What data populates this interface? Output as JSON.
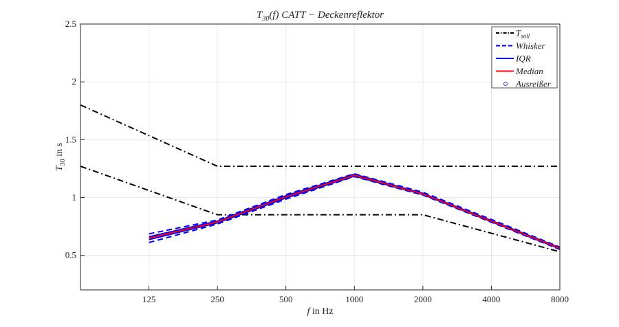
{
  "chart_data": {
    "type": "line",
    "title": "T30(f) CATT − Deckenreflektor",
    "title_parts": {
      "base": "T",
      "sub": "30",
      "rest": "(f) CATT − Deckenreflektor"
    },
    "xlabel": "f in Hz",
    "xlabel_parts": {
      "var": "f",
      "rest": " in Hz"
    },
    "ylabel": "T30 in s",
    "ylabel_parts": {
      "base": "T",
      "sub": "30",
      "rest": " in s"
    },
    "x_scale": "log2",
    "xlim": [
      62.5,
      8000
    ],
    "ylim": [
      0.2,
      2.5
    ],
    "xticks": [
      125,
      250,
      500,
      1000,
      2000,
      4000,
      8000
    ],
    "yticks": [
      0.5,
      1,
      1.5,
      2,
      2.5
    ],
    "ytick_labels": [
      "0.5",
      "1",
      "1.5",
      "2",
      "2.5"
    ],
    "grid": true,
    "legend_position": "top-right",
    "legend": [
      {
        "key": "tsoll",
        "label": "T",
        "sub": "soll",
        "style": "dashdot",
        "color": "#000000"
      },
      {
        "key": "whisker",
        "label": "Whisker",
        "style": "dashed",
        "color": "#0000ff"
      },
      {
        "key": "iqr",
        "label": "IQR",
        "style": "solid",
        "color": "#0000ff"
      },
      {
        "key": "median",
        "label": "Median",
        "style": "solid",
        "color": "#ff0000"
      },
      {
        "key": "outlier",
        "label": "Ausreißer",
        "style": "marker",
        "color": "#0000ff"
      }
    ],
    "series": [
      {
        "key": "tsoll_upper",
        "color": "#000000",
        "style": "dashdot",
        "width": 2,
        "x": [
          62.5,
          250,
          8000
        ],
        "y": [
          1.8,
          1.27,
          1.27
        ]
      },
      {
        "key": "tsoll_lower",
        "color": "#000000",
        "style": "dashdot",
        "width": 2,
        "x": [
          62.5,
          250,
          2000,
          8000
        ],
        "y": [
          1.27,
          0.85,
          0.85,
          0.53
        ]
      },
      {
        "key": "whisker_upper",
        "color": "#0000ff",
        "style": "dashed",
        "width": 2,
        "x": [
          125,
          250,
          500,
          1000,
          2000,
          4000,
          8000
        ],
        "y": [
          0.685,
          0.805,
          1.025,
          1.205,
          1.045,
          0.81,
          0.57
        ]
      },
      {
        "key": "whisker_lower",
        "color": "#0000ff",
        "style": "dashed",
        "width": 2,
        "x": [
          125,
          250,
          500,
          1000,
          2000,
          4000,
          8000
        ],
        "y": [
          0.61,
          0.77,
          0.985,
          1.18,
          1.02,
          0.785,
          0.55
        ]
      },
      {
        "key": "iqr_upper",
        "color": "#0000ff",
        "style": "solid",
        "width": 2,
        "x": [
          125,
          250,
          500,
          1000,
          2000,
          4000,
          8000
        ],
        "y": [
          0.66,
          0.795,
          1.015,
          1.2,
          1.035,
          0.8,
          0.565
        ]
      },
      {
        "key": "iqr_lower",
        "color": "#0000ff",
        "style": "solid",
        "width": 2,
        "x": [
          125,
          250,
          500,
          1000,
          2000,
          4000,
          8000
        ],
        "y": [
          0.635,
          0.78,
          0.995,
          1.185,
          1.025,
          0.79,
          0.555
        ]
      },
      {
        "key": "median",
        "color": "#ff0000",
        "style": "solid",
        "width": 2,
        "x": [
          125,
          250,
          500,
          1000,
          2000,
          4000,
          8000
        ],
        "y": [
          0.648,
          0.788,
          1.005,
          1.192,
          1.03,
          0.795,
          0.56
        ]
      }
    ]
  }
}
